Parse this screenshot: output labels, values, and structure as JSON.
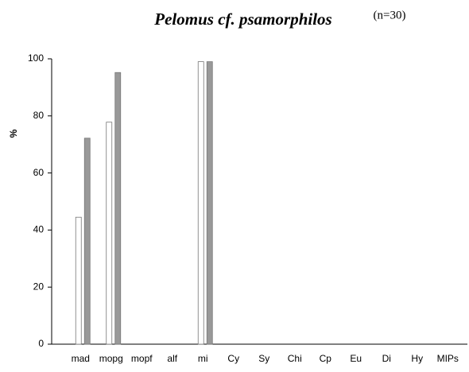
{
  "chart_data": {
    "type": "bar",
    "title": "Pelomus cf. psamorphilos",
    "subtitle": "(n=30)",
    "y_label": "%",
    "categories": [
      "mad",
      "mopg",
      "mopf",
      "alf",
      "mi",
      "Cy",
      "Sy",
      "Chi",
      "Cp",
      "Eu",
      "Di",
      "Hy",
      "MIPs"
    ],
    "series": [
      {
        "color": "#ffffff",
        "values": [
          44.5,
          77.8,
          0,
          0,
          99,
          0,
          0,
          0,
          0,
          0,
          0,
          0,
          0
        ]
      },
      {
        "color": "#999999",
        "values": [
          72.2,
          95.2,
          0,
          0,
          99,
          0,
          0,
          0,
          0,
          0,
          0,
          0,
          0
        ]
      }
    ],
    "ylim": [
      0,
      100
    ],
    "yticks": [
      0,
      20,
      40,
      60,
      80,
      100
    ],
    "grid": false
  }
}
